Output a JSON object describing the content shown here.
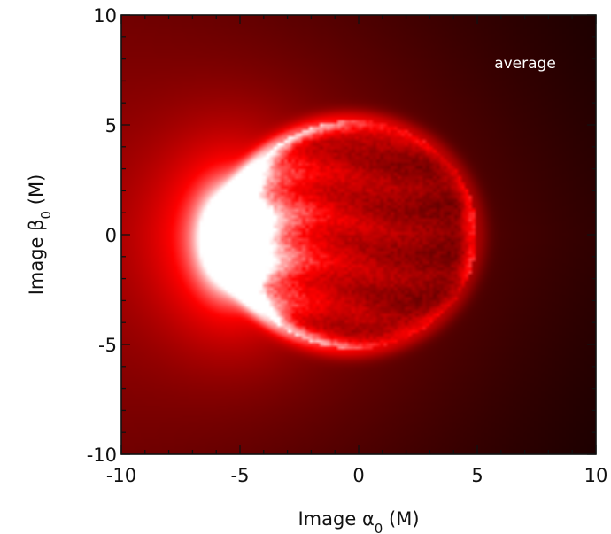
{
  "chart_data": {
    "type": "heatmap",
    "annotation": "average",
    "xlabel": {
      "prefix": "Image ",
      "symbol": "α",
      "subscript": "0",
      "suffix": " (M)"
    },
    "ylabel": {
      "prefix": "Image ",
      "symbol": "β",
      "subscript": "0",
      "suffix": " (M)"
    },
    "xlim": [
      -10,
      10
    ],
    "ylim": [
      -10,
      10
    ],
    "x_ticks": [
      -10,
      -5,
      0,
      5,
      10
    ],
    "y_ticks": [
      -10,
      -5,
      0,
      5,
      10
    ],
    "x_tick_labels": [
      "-10",
      "-5",
      "0",
      "5",
      "10"
    ],
    "y_tick_labels": [
      "-10",
      "-5",
      "0",
      "5",
      "10"
    ],
    "colormap": [
      "#000000",
      "#ff0000",
      "#ffffff"
    ],
    "features": {
      "photon_ring": {
        "center": [
          -0.2,
          0.0
        ],
        "radius": 5.2,
        "intensity": 0.45
      },
      "bright_crescent": {
        "center": [
          -5.3,
          -0.2
        ],
        "width": 1.3,
        "height": 3.6,
        "intensity": 1.0
      },
      "inner_disk": {
        "center": [
          0.0,
          0.0
        ],
        "radius": 4.6,
        "intensity": 0.35
      },
      "dim_side": "right",
      "bright_side": "left"
    }
  }
}
